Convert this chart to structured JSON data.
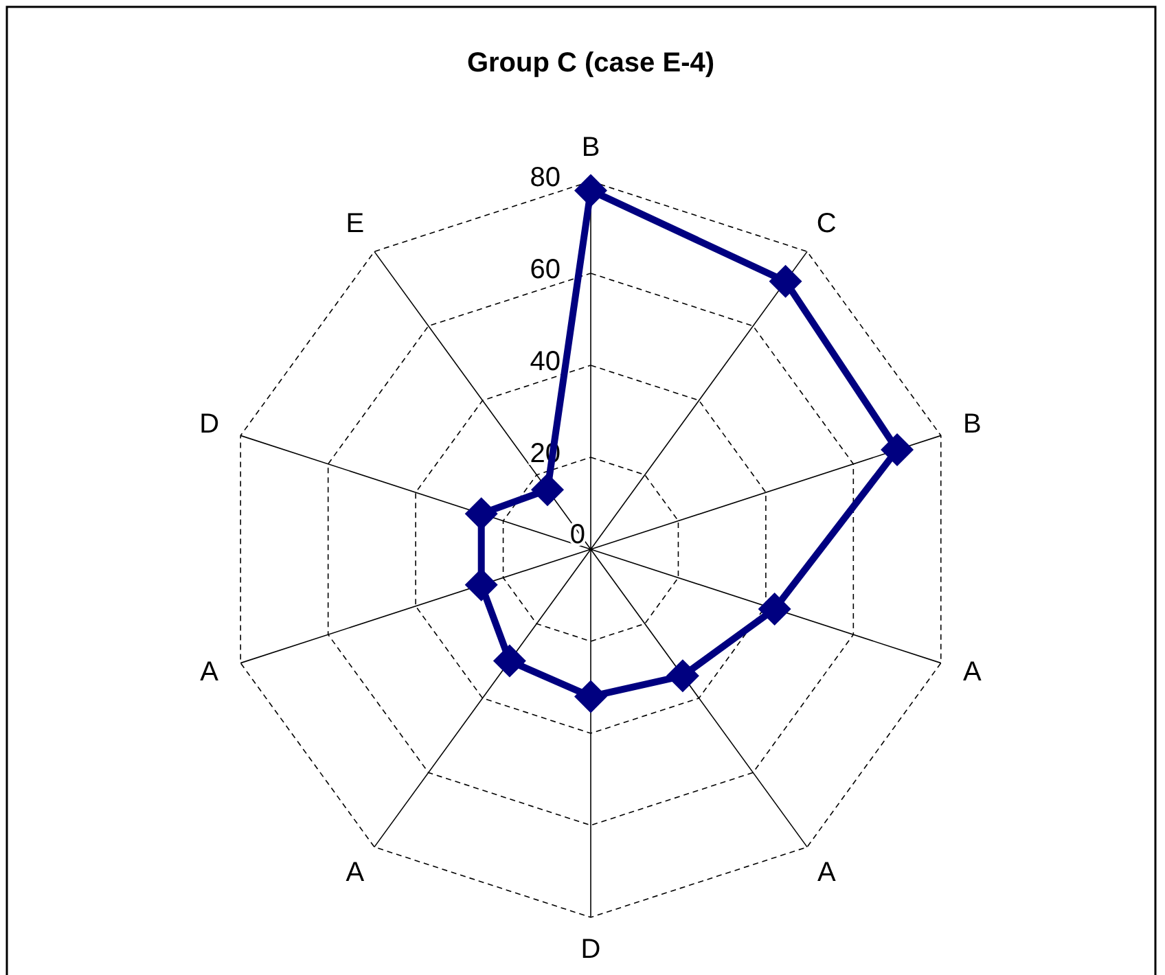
{
  "chart_data": {
    "type": "radar",
    "title": "Group C (case E-4)",
    "categories": [
      "B",
      "C",
      "B",
      "A",
      "A",
      "D",
      "A",
      "A",
      "D",
      "E"
    ],
    "series": [
      {
        "color": "#000080",
        "values": [
          78,
          72,
          70,
          42,
          34,
          32,
          30,
          25,
          25,
          16
        ]
      }
    ],
    "ylim": [
      0,
      80
    ],
    "yticks": [
      0,
      20,
      40,
      60,
      80
    ],
    "grid": true,
    "marker": "diamond",
    "line_style": "solid"
  }
}
